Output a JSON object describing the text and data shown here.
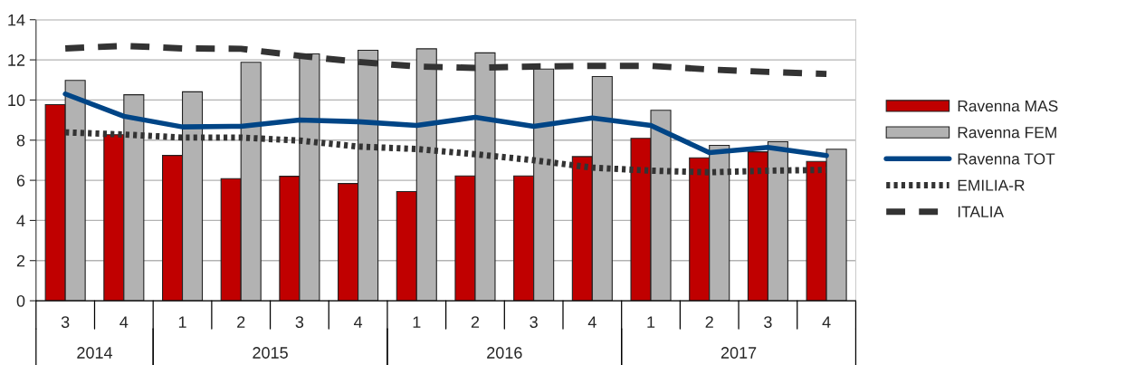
{
  "chart_data": {
    "type": "bar",
    "categories": [
      "3",
      "4",
      "1",
      "2",
      "3",
      "4",
      "1",
      "2",
      "3",
      "4",
      "1",
      "2",
      "3",
      "4"
    ],
    "annotations": [
      "2014",
      "2015",
      "2016",
      "2017"
    ],
    "series": [
      {
        "name": "Ravenna MAS",
        "color": "#c00000",
        "values": [
          9.77,
          8.27,
          7.24,
          6.08,
          6.2,
          5.84,
          5.44,
          6.22,
          6.22,
          7.18,
          8.09,
          7.12,
          7.42,
          6.94
        ]
      },
      {
        "name": "Ravenna FEM",
        "color": "#b2b2b2",
        "values": [
          10.98,
          10.26,
          10.41,
          11.88,
          12.3,
          12.48,
          12.55,
          12.35,
          11.54,
          11.17,
          9.49,
          7.74,
          7.92,
          7.55
        ]
      },
      {
        "name": "Ravenna TOT",
        "type": "line",
        "line_style": "solid",
        "color": "#004586",
        "values": [
          10.3,
          9.19,
          8.66,
          8.69,
          9.0,
          8.92,
          8.73,
          9.14,
          8.69,
          9.11,
          8.73,
          7.38,
          7.64,
          7.23
        ]
      },
      {
        "name": "EMILIA-R",
        "type": "line",
        "line_style": "dotted",
        "color": "#333333",
        "values": [
          8.39,
          8.28,
          8.13,
          8.13,
          7.98,
          7.68,
          7.56,
          7.3,
          7.0,
          6.63,
          6.48,
          6.4,
          6.48,
          6.52
        ]
      },
      {
        "name": "ITALIA",
        "type": "line",
        "line_style": "dashed",
        "color": "#333333",
        "values": [
          12.57,
          12.7,
          12.57,
          12.55,
          12.2,
          11.9,
          11.67,
          11.6,
          11.67,
          11.7,
          11.7,
          11.52,
          11.4,
          11.3
        ]
      }
    ],
    "ylim": [
      0,
      14
    ],
    "yticks": [
      0,
      2,
      4,
      6,
      8,
      10,
      12,
      14
    ],
    "grid": "y",
    "legend": "right"
  }
}
